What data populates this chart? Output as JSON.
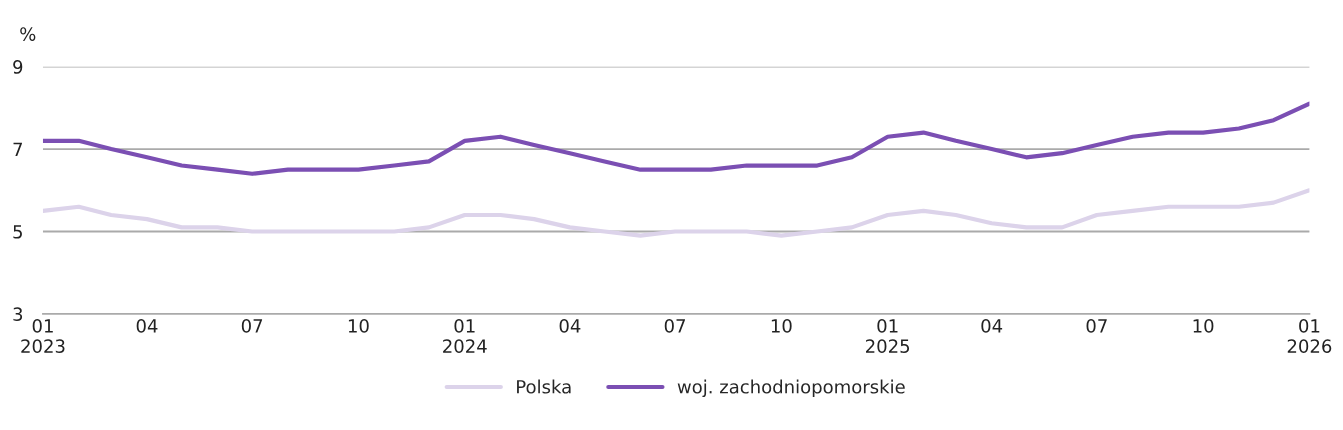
{
  "chart_data": {
    "type": "line",
    "ylabel": "%",
    "x": [
      "2023-01",
      "2023-02",
      "2023-03",
      "2023-04",
      "2023-05",
      "2023-06",
      "2023-07",
      "2023-08",
      "2023-09",
      "2023-10",
      "2023-11",
      "2023-12",
      "2024-01",
      "2024-02",
      "2024-03",
      "2024-04",
      "2024-05",
      "2024-06",
      "2024-07",
      "2024-08",
      "2024-09",
      "2024-10",
      "2024-11",
      "2024-12",
      "2025-01",
      "2025-02",
      "2025-03",
      "2025-04",
      "2025-05",
      "2025-06",
      "2025-07",
      "2025-08",
      "2025-09",
      "2025-10",
      "2025-11",
      "2025-12",
      "2026-01"
    ],
    "series": [
      {
        "name": "Polska",
        "color": "#dcd3ea",
        "values": [
          5.5,
          5.6,
          5.4,
          5.3,
          5.1,
          5.1,
          5.0,
          5.0,
          5.0,
          5.0,
          5.0,
          5.1,
          5.4,
          5.4,
          5.3,
          5.1,
          5.0,
          4.9,
          5.0,
          5.0,
          5.0,
          4.9,
          5.0,
          5.1,
          5.4,
          5.5,
          5.4,
          5.2,
          5.1,
          5.1,
          5.4,
          5.5,
          5.6,
          5.6,
          5.6,
          5.7,
          6.0
        ]
      },
      {
        "name": "woj. zachodniopomorskie",
        "color": "#7b4fb3",
        "values": [
          7.2,
          7.2,
          7.0,
          6.8,
          6.6,
          6.5,
          6.4,
          6.5,
          6.5,
          6.5,
          6.6,
          6.7,
          7.2,
          7.3,
          7.1,
          6.9,
          6.7,
          6.5,
          6.5,
          6.5,
          6.6,
          6.6,
          6.6,
          6.8,
          7.3,
          7.4,
          7.2,
          7.0,
          6.8,
          6.9,
          7.1,
          7.3,
          7.4,
          7.4,
          7.5,
          7.7,
          8.1
        ]
      }
    ],
    "xlim": [
      "2023-01",
      "2026-01"
    ],
    "xticks": [
      {
        "value": "2023-01",
        "label": "01\n2023"
      },
      {
        "value": "2023-04",
        "label": "04"
      },
      {
        "value": "2023-07",
        "label": "07"
      },
      {
        "value": "2023-10",
        "label": "10"
      },
      {
        "value": "2024-01",
        "label": "01\n2024"
      },
      {
        "value": "2024-04",
        "label": "04"
      },
      {
        "value": "2024-07",
        "label": "07"
      },
      {
        "value": "2024-10",
        "label": "10"
      },
      {
        "value": "2025-01",
        "label": "01\n2025"
      },
      {
        "value": "2025-04",
        "label": "04"
      },
      {
        "value": "2025-07",
        "label": "07"
      },
      {
        "value": "2025-10",
        "label": "10"
      },
      {
        "value": "2026-01",
        "label": "01\n2026"
      }
    ],
    "ylim": [
      3,
      9
    ],
    "yticks": [
      3,
      5,
      7,
      9
    ],
    "grid": "y",
    "legend": "bottom",
    "marker": "none",
    "line_style": "solid"
  }
}
